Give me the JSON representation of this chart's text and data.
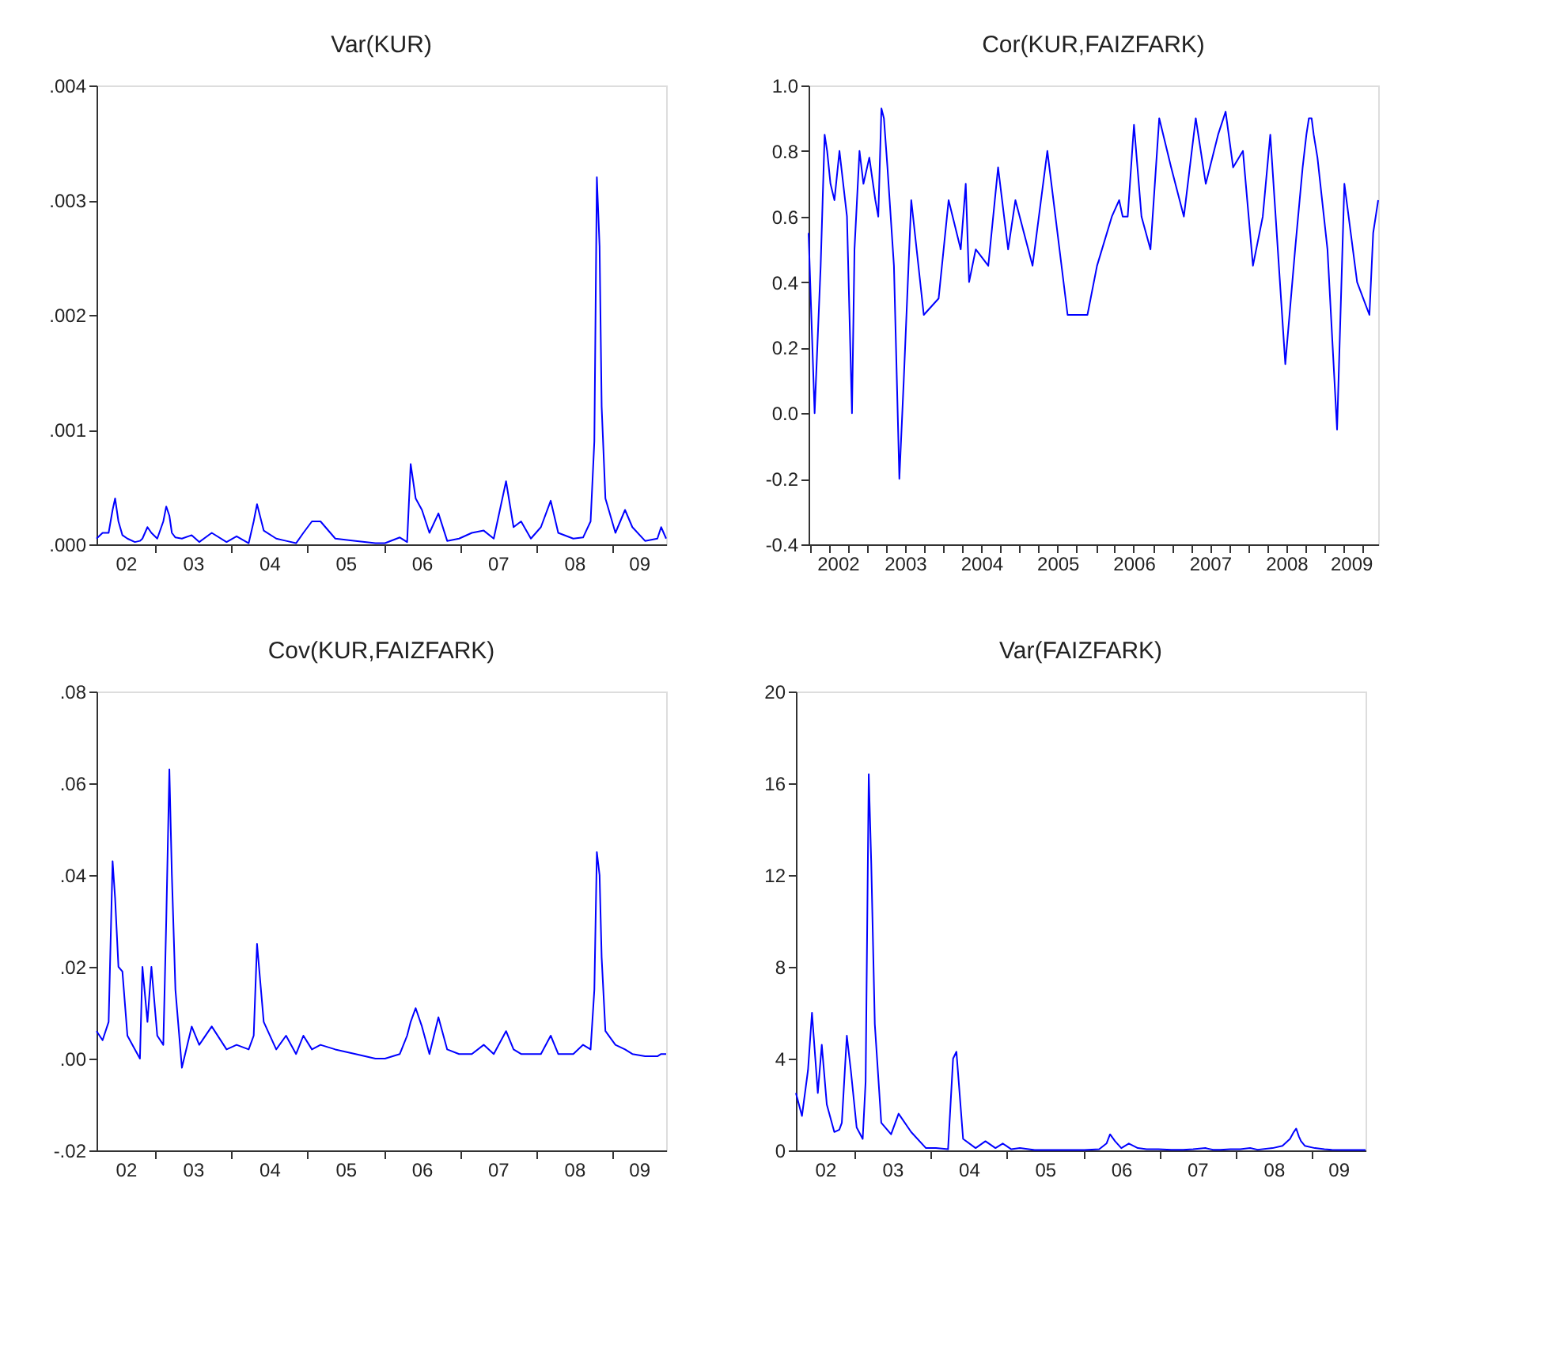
{
  "chart_data": [
    {
      "type": "line",
      "title": "Var(KUR)",
      "grid": false,
      "x": [
        "2002-03-27",
        "2002-04-25",
        "2002-05-24",
        "2002-06-12",
        "2002-06-24",
        "2002-07-10",
        "2002-07-29",
        "2002-08-22",
        "2002-09-27",
        "2002-10-21",
        "2002-11-02",
        "2002-11-26",
        "2002-12-15",
        "2003-01-12",
        "2003-02-10",
        "2003-02-24",
        "2003-03-11",
        "2003-03-23",
        "2003-04-09",
        "2003-05-10",
        "2003-06-26",
        "2003-08-01",
        "2003-09-30",
        "2003-12-10",
        "2004-01-27",
        "2004-03-25",
        "2004-04-18",
        "2004-05-04",
        "2004-06-05",
        "2004-08-04",
        "2004-09-20",
        "2004-11-07",
        "2004-12-12",
        "2005-01-22",
        "2005-03-04",
        "2005-05-14",
        "2005-08-19",
        "2005-11-22",
        "2006-01-07",
        "2006-03-19",
        "2006-04-23",
        "2006-05-10",
        "2006-06-03",
        "2006-07-03",
        "2006-08-08",
        "2006-09-20",
        "2006-11-01",
        "2006-12-28",
        "2007-02-27",
        "2007-04-25",
        "2007-06-12",
        "2007-08-10",
        "2007-09-15",
        "2007-10-21",
        "2007-12-07",
        "2008-01-24",
        "2008-03-11",
        "2008-04-16",
        "2008-06-27",
        "2008-08-13",
        "2008-09-18",
        "2008-10-06",
        "2008-10-18",
        "2008-10-31",
        "2008-11-10",
        "2008-11-28",
        "2009-01-15",
        "2009-03-02",
        "2009-04-06",
        "2009-06-06",
        "2009-08-04",
        "2009-08-22",
        "2009-09-15"
      ],
      "series": [
        {
          "color": "#0000ff",
          "values": [
            5e-05,
            0.0001,
            0.0001,
            0.0003,
            0.0004,
            0.0002,
            8e-05,
            5e-05,
            2e-05,
            3e-05,
            5e-05,
            0.00015,
            0.0001,
            5e-05,
            0.0002,
            0.00033,
            0.00025,
            0.0001,
            6e-05,
            5e-05,
            8e-05,
            2e-05,
            0.0001,
            2e-05,
            7e-05,
            1e-05,
            0.0002,
            0.00035,
            0.00012,
            5e-05,
            3e-05,
            1e-05,
            0.0001,
            0.0002,
            0.0002,
            5e-05,
            3e-05,
            1e-05,
            1e-05,
            6e-05,
            2e-05,
            0.0007,
            0.0004,
            0.0003,
            0.0001,
            0.00027,
            3e-05,
            5e-05,
            0.0001,
            0.00012,
            5e-05,
            0.00055,
            0.00015,
            0.0002,
            5e-05,
            0.00015,
            0.00038,
            0.0001,
            5e-05,
            6e-05,
            0.0002,
            0.0009,
            0.0032,
            0.0026,
            0.0012,
            0.0004,
            0.0001,
            0.0003,
            0.00015,
            3e-05,
            5e-05,
            0.00015,
            5e-05
          ]
        }
      ],
      "xlim": [
        "2002-03-27",
        "2009-09-15"
      ],
      "xticks": [
        {
          "value": "2002-08-14",
          "label": "02"
        },
        {
          "value": "2003-01-01",
          "label": null
        },
        {
          "value": "2003-07-02",
          "label": "03"
        },
        {
          "value": "2004-01-01",
          "label": null
        },
        {
          "value": "2004-07-02",
          "label": "04"
        },
        {
          "value": "2005-01-01",
          "label": null
        },
        {
          "value": "2005-07-02",
          "label": "05"
        },
        {
          "value": "2006-01-01",
          "label": null
        },
        {
          "value": "2006-07-02",
          "label": "06"
        },
        {
          "value": "2007-01-01",
          "label": null
        },
        {
          "value": "2007-07-02",
          "label": "07"
        },
        {
          "value": "2008-01-01",
          "label": null
        },
        {
          "value": "2008-07-02",
          "label": "08"
        },
        {
          "value": "2009-01-01",
          "label": null
        },
        {
          "value": "2009-05-08",
          "label": "09"
        }
      ],
      "ylim": [
        0,
        0.004
      ],
      "yticks": [
        {
          "value": 0,
          "label": ".000"
        },
        {
          "value": 0.001,
          "label": ".001"
        },
        {
          "value": 0.002,
          "label": ".002"
        },
        {
          "value": 0.003,
          "label": ".003"
        },
        {
          "value": 0.004,
          "label": ".004"
        }
      ]
    },
    {
      "type": "line",
      "title": "Cor(KUR,FAIZFARK)",
      "grid": false,
      "x": [
        "2002-03-27",
        "2002-04-25",
        "2002-05-24",
        "2002-06-12",
        "2002-06-24",
        "2002-07-10",
        "2002-07-29",
        "2002-08-22",
        "2002-09-27",
        "2002-10-21",
        "2002-11-02",
        "2002-11-26",
        "2002-12-15",
        "2003-01-12",
        "2003-02-10",
        "2003-02-24",
        "2003-03-11",
        "2003-03-23",
        "2003-04-09",
        "2003-05-10",
        "2003-06-05",
        "2003-06-26",
        "2003-08-01",
        "2003-09-30",
        "2003-12-10",
        "2004-01-27",
        "2004-03-25",
        "2004-04-18",
        "2004-05-04",
        "2004-06-05",
        "2004-08-04",
        "2004-09-20",
        "2004-11-07",
        "2004-12-12",
        "2005-01-22",
        "2005-03-04",
        "2005-05-14",
        "2005-08-19",
        "2005-11-22",
        "2006-01-07",
        "2006-03-19",
        "2006-04-23",
        "2006-05-10",
        "2006-06-03",
        "2006-07-03",
        "2006-08-08",
        "2006-09-20",
        "2006-11-01",
        "2006-12-28",
        "2007-02-27",
        "2007-04-25",
        "2007-06-12",
        "2007-08-10",
        "2007-09-15",
        "2007-10-21",
        "2007-12-07",
        "2008-01-24",
        "2008-03-11",
        "2008-04-16",
        "2008-06-27",
        "2008-08-13",
        "2008-09-18",
        "2008-10-06",
        "2008-10-18",
        "2008-10-31",
        "2008-11-10",
        "2008-11-28",
        "2009-01-15",
        "2009-03-02",
        "2009-04-06",
        "2009-06-06",
        "2009-08-04",
        "2009-08-22",
        "2009-09-15"
      ],
      "series": [
        {
          "color": "#0000ff",
          "values": [
            0.55,
            0.0,
            0.45,
            0.85,
            0.8,
            0.7,
            0.65,
            0.8,
            0.6,
            0.0,
            0.5,
            0.8,
            0.7,
            0.78,
            0.65,
            0.6,
            0.93,
            0.9,
            0.75,
            0.45,
            -0.2,
            0.1,
            0.65,
            0.3,
            0.35,
            0.65,
            0.5,
            0.7,
            0.4,
            0.5,
            0.45,
            0.75,
            0.5,
            0.65,
            0.55,
            0.45,
            0.8,
            0.3,
            0.3,
            0.45,
            0.6,
            0.65,
            0.6,
            0.6,
            0.88,
            0.6,
            0.5,
            0.9,
            0.75,
            0.6,
            0.9,
            0.7,
            0.85,
            0.92,
            0.75,
            0.8,
            0.45,
            0.6,
            0.85,
            0.15,
            0.5,
            0.75,
            0.85,
            0.9,
            0.9,
            0.85,
            0.78,
            0.5,
            -0.05,
            0.7,
            0.4,
            0.3,
            0.55,
            0.65
          ]
        }
      ],
      "xlim": [
        "2002-03-27",
        "2009-09-15"
      ],
      "xticks": [
        {
          "value": "2002-04-01",
          "label": null
        },
        {
          "value": "2002-07-01",
          "label": null
        },
        {
          "value": "2002-08-14",
          "label": "2002"
        },
        {
          "value": "2002-10-01",
          "label": null
        },
        {
          "value": "2003-01-01",
          "label": null
        },
        {
          "value": "2003-04-01",
          "label": null
        },
        {
          "value": "2003-07-01",
          "label": null
        },
        {
          "value": "2003-07-02",
          "label": "2003"
        },
        {
          "value": "2003-10-01",
          "label": null
        },
        {
          "value": "2004-01-01",
          "label": null
        },
        {
          "value": "2004-04-01",
          "label": null
        },
        {
          "value": "2004-07-01",
          "label": null
        },
        {
          "value": "2004-07-02",
          "label": "2004"
        },
        {
          "value": "2004-10-01",
          "label": null
        },
        {
          "value": "2005-01-01",
          "label": null
        },
        {
          "value": "2005-04-01",
          "label": null
        },
        {
          "value": "2005-07-01",
          "label": null
        },
        {
          "value": "2005-07-02",
          "label": "2005"
        },
        {
          "value": "2005-10-01",
          "label": null
        },
        {
          "value": "2006-01-01",
          "label": null
        },
        {
          "value": "2006-04-01",
          "label": null
        },
        {
          "value": "2006-07-01",
          "label": null
        },
        {
          "value": "2006-07-02",
          "label": "2006"
        },
        {
          "value": "2006-10-01",
          "label": null
        },
        {
          "value": "2007-01-01",
          "label": null
        },
        {
          "value": "2007-04-01",
          "label": null
        },
        {
          "value": "2007-07-01",
          "label": null
        },
        {
          "value": "2007-07-02",
          "label": "2007"
        },
        {
          "value": "2007-10-01",
          "label": null
        },
        {
          "value": "2008-01-01",
          "label": null
        },
        {
          "value": "2008-04-01",
          "label": null
        },
        {
          "value": "2008-07-01",
          "label": null
        },
        {
          "value": "2008-07-02",
          "label": "2008"
        },
        {
          "value": "2008-10-01",
          "label": null
        },
        {
          "value": "2009-01-01",
          "label": null
        },
        {
          "value": "2009-04-01",
          "label": null
        },
        {
          "value": "2009-05-08",
          "label": "2009"
        },
        {
          "value": "2009-07-01",
          "label": null
        }
      ],
      "ylim": [
        -0.4,
        1.0
      ],
      "yticks": [
        {
          "value": -0.4,
          "label": "-0.4"
        },
        {
          "value": -0.2,
          "label": "-0.2"
        },
        {
          "value": 0,
          "label": "0.0"
        },
        0.2,
        0.4,
        0.6,
        0.8,
        {
          "value": 1.0,
          "label": "1.0"
        }
      ]
    },
    {
      "type": "line",
      "title": "Cov(KUR,FAIZFARK)",
      "grid": false,
      "x": [
        "2002-03-27",
        "2002-04-25",
        "2002-05-24",
        "2002-06-12",
        "2002-06-24",
        "2002-07-10",
        "2002-07-29",
        "2002-08-22",
        "2002-09-27",
        "2002-10-21",
        "2002-11-02",
        "2002-11-26",
        "2002-12-15",
        "2003-01-12",
        "2003-02-10",
        "2003-02-24",
        "2003-03-11",
        "2003-03-23",
        "2003-04-09",
        "2003-05-10",
        "2003-06-26",
        "2003-08-01",
        "2003-09-30",
        "2003-12-10",
        "2004-01-27",
        "2004-03-25",
        "2004-04-18",
        "2004-05-04",
        "2004-06-05",
        "2004-08-04",
        "2004-09-20",
        "2004-11-07",
        "2004-12-12",
        "2005-01-22",
        "2005-03-04",
        "2005-05-14",
        "2005-08-19",
        "2005-11-22",
        "2006-01-07",
        "2006-03-19",
        "2006-04-23",
        "2006-05-10",
        "2006-06-03",
        "2006-07-03",
        "2006-08-08",
        "2006-09-20",
        "2006-11-01",
        "2006-12-28",
        "2007-02-27",
        "2007-04-25",
        "2007-06-12",
        "2007-08-10",
        "2007-09-15",
        "2007-10-21",
        "2007-12-07",
        "2008-01-24",
        "2008-03-11",
        "2008-04-16",
        "2008-06-27",
        "2008-08-13",
        "2008-09-18",
        "2008-10-06",
        "2008-10-18",
        "2008-10-31",
        "2008-11-10",
        "2008-11-28",
        "2009-01-15",
        "2009-03-02",
        "2009-04-06",
        "2009-06-06",
        "2009-08-04",
        "2009-08-22",
        "2009-09-15"
      ],
      "series": [
        {
          "color": "#0000ff",
          "values": [
            0.006,
            0.004,
            0.008,
            0.043,
            0.035,
            0.02,
            0.019,
            0.005,
            0.002,
            0.0,
            0.02,
            0.008,
            0.02,
            0.005,
            0.003,
            0.03,
            0.063,
            0.04,
            0.015,
            -0.002,
            0.007,
            0.003,
            0.007,
            0.002,
            0.003,
            0.002,
            0.005,
            0.025,
            0.008,
            0.002,
            0.005,
            0.001,
            0.005,
            0.002,
            0.003,
            0.002,
            0.001,
            0.0,
            0.0,
            0.001,
            0.005,
            0.008,
            0.011,
            0.007,
            0.001,
            0.009,
            0.002,
            0.001,
            0.001,
            0.003,
            0.001,
            0.006,
            0.002,
            0.001,
            0.001,
            0.001,
            0.005,
            0.001,
            0.001,
            0.003,
            0.002,
            0.015,
            0.045,
            0.04,
            0.022,
            0.006,
            0.003,
            0.002,
            0.001,
            0.0005,
            0.0005,
            0.001,
            0.001
          ]
        }
      ],
      "xlim": [
        "2002-03-27",
        "2009-09-15"
      ],
      "xticks": [
        {
          "value": "2002-08-14",
          "label": "02"
        },
        {
          "value": "2003-01-01",
          "label": null
        },
        {
          "value": "2003-07-02",
          "label": "03"
        },
        {
          "value": "2004-01-01",
          "label": null
        },
        {
          "value": "2004-07-02",
          "label": "04"
        },
        {
          "value": "2005-01-01",
          "label": null
        },
        {
          "value": "2005-07-02",
          "label": "05"
        },
        {
          "value": "2006-01-01",
          "label": null
        },
        {
          "value": "2006-07-02",
          "label": "06"
        },
        {
          "value": "2007-01-01",
          "label": null
        },
        {
          "value": "2007-07-02",
          "label": "07"
        },
        {
          "value": "2008-01-01",
          "label": null
        },
        {
          "value": "2008-07-02",
          "label": "08"
        },
        {
          "value": "2009-01-01",
          "label": null
        },
        {
          "value": "2009-05-08",
          "label": "09"
        }
      ],
      "ylim": [
        -0.02,
        0.08
      ],
      "yticks": [
        {
          "value": -0.02,
          "label": "-.02"
        },
        {
          "value": 0,
          "label": ".00"
        },
        {
          "value": 0.02,
          "label": ".02"
        },
        {
          "value": 0.04,
          "label": ".04"
        },
        {
          "value": 0.06,
          "label": ".06"
        },
        {
          "value": 0.08,
          "label": ".08"
        }
      ]
    },
    {
      "type": "line",
      "title": "Var(FAIZFARK)",
      "grid": false,
      "x": [
        "2002-03-27",
        "2002-04-25",
        "2002-05-24",
        "2002-06-12",
        "2002-06-24",
        "2002-07-10",
        "2002-07-29",
        "2002-08-22",
        "2002-09-27",
        "2002-10-21",
        "2002-11-02",
        "2002-11-26",
        "2002-12-15",
        "2003-01-12",
        "2003-02-10",
        "2003-02-24",
        "2003-03-11",
        "2003-03-23",
        "2003-04-09",
        "2003-05-10",
        "2003-06-26",
        "2003-08-01",
        "2003-09-30",
        "2003-12-10",
        "2004-01-27",
        "2004-03-25",
        "2004-04-18",
        "2004-05-04",
        "2004-06-05",
        "2004-08-04",
        "2004-09-20",
        "2004-11-07",
        "2004-12-12",
        "2005-01-22",
        "2005-03-04",
        "2005-05-14",
        "2005-08-19",
        "2005-11-22",
        "2006-01-07",
        "2006-03-19",
        "2006-04-23",
        "2006-05-10",
        "2006-06-03",
        "2006-07-03",
        "2006-08-08",
        "2006-09-20",
        "2006-11-01",
        "2006-12-28",
        "2007-02-27",
        "2007-04-25",
        "2007-06-12",
        "2007-08-10",
        "2007-09-15",
        "2007-10-21",
        "2007-12-07",
        "2008-01-24",
        "2008-03-11",
        "2008-04-16",
        "2008-06-27",
        "2008-08-13",
        "2008-09-18",
        "2008-10-06",
        "2008-10-18",
        "2008-10-31",
        "2008-11-10",
        "2008-11-28",
        "2009-01-15",
        "2009-03-02",
        "2009-04-06",
        "2009-06-06",
        "2009-08-04",
        "2009-08-22",
        "2009-09-15"
      ],
      "series": [
        {
          "color": "#0000ff",
          "values": [
            2.5,
            1.5,
            3.5,
            6.0,
            4.5,
            2.5,
            4.6,
            2.0,
            0.8,
            0.9,
            1.2,
            5.0,
            3.5,
            1.0,
            0.5,
            3.0,
            16.4,
            12.5,
            5.5,
            1.2,
            0.7,
            1.6,
            0.8,
            0.1,
            0.1,
            0.05,
            4.0,
            4.3,
            0.5,
            0.1,
            0.4,
            0.1,
            0.3,
            0.05,
            0.1,
            0.02,
            0.02,
            0.02,
            0.02,
            0.05,
            0.3,
            0.7,
            0.4,
            0.1,
            0.3,
            0.1,
            0.05,
            0.05,
            0.03,
            0.03,
            0.05,
            0.1,
            0.03,
            0.03,
            0.05,
            0.05,
            0.1,
            0.03,
            0.1,
            0.2,
            0.5,
            0.8,
            0.95,
            0.6,
            0.4,
            0.2,
            0.1,
            0.05,
            0.03,
            0.02,
            0.02,
            0.02,
            0.02
          ]
        }
      ],
      "xlim": [
        "2002-03-27",
        "2009-09-15"
      ],
      "xticks": [
        {
          "value": "2002-08-14",
          "label": "02"
        },
        {
          "value": "2003-01-01",
          "label": null
        },
        {
          "value": "2003-07-02",
          "label": "03"
        },
        {
          "value": "2004-01-01",
          "label": null
        },
        {
          "value": "2004-07-02",
          "label": "04"
        },
        {
          "value": "2005-01-01",
          "label": null
        },
        {
          "value": "2005-07-02",
          "label": "05"
        },
        {
          "value": "2006-01-01",
          "label": null
        },
        {
          "value": "2006-07-02",
          "label": "06"
        },
        {
          "value": "2007-01-01",
          "label": null
        },
        {
          "value": "2007-07-02",
          "label": "07"
        },
        {
          "value": "2008-01-01",
          "label": null
        },
        {
          "value": "2008-07-02",
          "label": "08"
        },
        {
          "value": "2009-01-01",
          "label": null
        },
        {
          "value": "2009-05-08",
          "label": "09"
        }
      ],
      "ylim": [
        0,
        20
      ],
      "yticks": [
        0,
        4,
        8,
        12,
        16,
        20
      ]
    }
  ]
}
